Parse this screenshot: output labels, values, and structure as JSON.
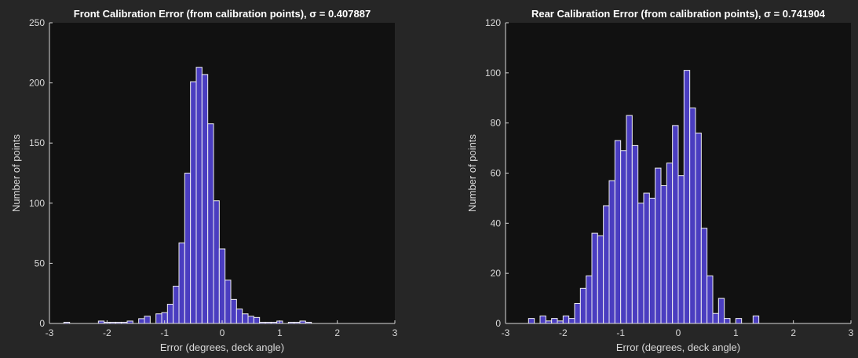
{
  "chart_data": [
    {
      "type": "bar",
      "title": "Front Calibration Error (from calibration points), σ = 0.407887",
      "xlabel": "Error (degrees, deck angle)",
      "ylabel": "Number of points",
      "xlim": [
        -3,
        3
      ],
      "ylim": [
        0,
        250
      ],
      "xticks": [
        -3,
        -2,
        -1,
        0,
        1,
        2,
        3
      ],
      "yticks": [
        0,
        50,
        100,
        150,
        200,
        250
      ],
      "bin_width": 0.1,
      "bin_start": -2.75,
      "values": [
        1,
        0,
        0,
        0,
        0,
        0,
        2,
        1,
        1,
        1,
        1,
        2,
        0,
        4,
        6,
        0,
        8,
        9,
        16,
        31,
        67,
        125,
        201,
        213,
        207,
        166,
        102,
        62,
        36,
        20,
        12,
        8,
        6,
        5,
        1,
        1,
        1,
        2,
        0,
        1,
        1,
        2,
        1
      ]
    },
    {
      "type": "bar",
      "title": "Rear Calibration Error (from calibration points), σ = 0.741904",
      "xlabel": "Error (degrees, deck angle)",
      "ylabel": "Number of points",
      "xlim": [
        -3,
        3
      ],
      "ylim": [
        0,
        120
      ],
      "xticks": [
        -3,
        -2,
        -1,
        0,
        1,
        2,
        3
      ],
      "yticks": [
        0,
        20,
        40,
        60,
        80,
        100,
        120
      ],
      "bin_width": 0.1,
      "bin_start": -2.6,
      "values": [
        2,
        0,
        3,
        1,
        2,
        1,
        3,
        2,
        8,
        14,
        19,
        36,
        35,
        47,
        57,
        73,
        69,
        83,
        71,
        48,
        52,
        50,
        62,
        55,
        64,
        79,
        59,
        101,
        86,
        76,
        38,
        19,
        4,
        10,
        2,
        0,
        2,
        0,
        0,
        3
      ]
    }
  ]
}
